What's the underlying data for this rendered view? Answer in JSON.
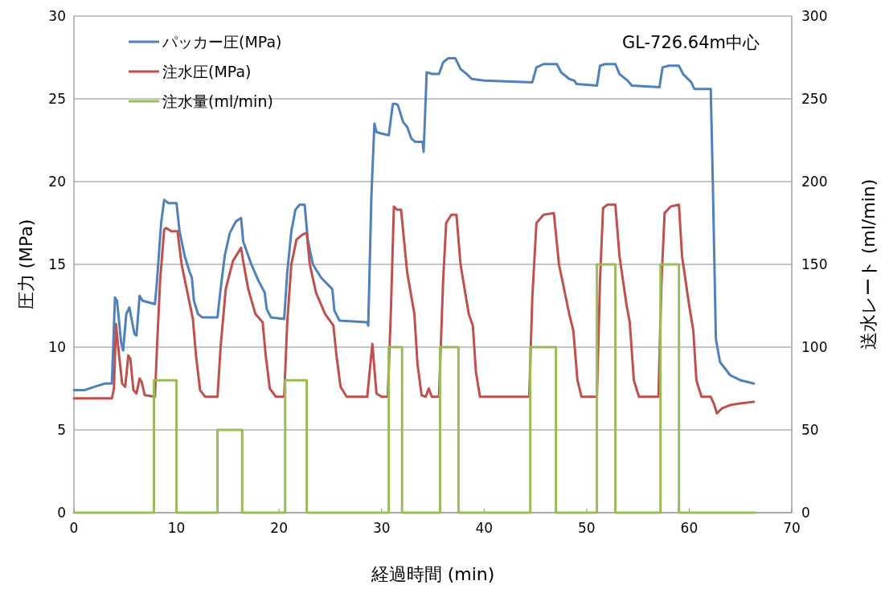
{
  "chart_data": {
    "type": "line",
    "xlabel": "経過時間 (min)",
    "ylabel": "圧力 (MPa)",
    "y2label": "送水レート (ml/min)",
    "annotations": [
      "GL-726.64m中心"
    ],
    "xlim": [
      0,
      70
    ],
    "xticks": [
      0,
      10,
      20,
      30,
      40,
      50,
      60,
      70
    ],
    "ylim": [
      0,
      30
    ],
    "yticks": [
      0,
      5,
      10,
      15,
      20,
      25,
      30
    ],
    "y2lim": [
      0,
      300
    ],
    "y2ticks": [
      0,
      50,
      100,
      150,
      200,
      250,
      300
    ],
    "grid": "y",
    "legend": "top left",
    "series": [
      {
        "name": "パッカー圧(MPa)",
        "color": "#4f81bd",
        "x": [
          0,
          1,
          2,
          3,
          3.7,
          4.0,
          4.2,
          4.6,
          4.8,
          5.1,
          5.4,
          5.9,
          6.1,
          6.4,
          6.7,
          7.9,
          8.1,
          8.5,
          8.8,
          9.2,
          10.0,
          10.3,
          10.8,
          11.3,
          11.5,
          11.7,
          12.1,
          12.5,
          14.0,
          14.3,
          14.7,
          15.2,
          15.8,
          16.3,
          16.5,
          17.3,
          18.0,
          18.6,
          18.8,
          19.2,
          20.5,
          20.8,
          21.2,
          21.6,
          22.0,
          22.5,
          22.8,
          23.3,
          24.1,
          25.2,
          25.4,
          25.9,
          28.6,
          28.7,
          29.0,
          29.3,
          29.5,
          30.0,
          30.7,
          31.1,
          31.4,
          31.6,
          32.1,
          32.5,
          32.9,
          33.3,
          34.0,
          34.1,
          34.4,
          35.0,
          35.6,
          36.0,
          36.5,
          37.2,
          37.7,
          38.3,
          38.8,
          40,
          44.7,
          45.1,
          45.8,
          47.1,
          47.5,
          48.3,
          48.8,
          49.0,
          51.0,
          51.3,
          51.8,
          52.8,
          53.2,
          54.0,
          54.4,
          57.1,
          57.4,
          58.0,
          59.0,
          59.4,
          60.2,
          60.5,
          62.1,
          62.3,
          62.6,
          63.0,
          64.0,
          65.0,
          66.3
        ],
        "values": [
          7.4,
          7.4,
          7.6,
          7.8,
          7.8,
          13.0,
          12.8,
          10.3,
          9.8,
          12.0,
          12.4,
          10.8,
          10.7,
          13.1,
          12.8,
          12.6,
          14,
          17.5,
          18.9,
          18.7,
          18.7,
          17,
          15.5,
          14.5,
          14.2,
          12.8,
          12.0,
          11.8,
          11.8,
          13.5,
          15.5,
          16.9,
          17.6,
          17.8,
          16.4,
          15.0,
          14.0,
          13.3,
          12.3,
          11.8,
          11.7,
          14.5,
          17,
          18.3,
          18.6,
          18.6,
          16.5,
          15.0,
          14.2,
          13.5,
          12.2,
          11.6,
          11.5,
          11.3,
          19,
          23.5,
          23.0,
          22.9,
          22.8,
          24.7,
          24.7,
          24.6,
          23.6,
          23.3,
          22.6,
          22.4,
          22.4,
          21.8,
          26.6,
          26.5,
          26.5,
          27.2,
          27.45,
          27.45,
          26.8,
          26.5,
          26.2,
          26.1,
          26.0,
          26.9,
          27.1,
          27.1,
          26.6,
          26.2,
          26.1,
          25.9,
          25.8,
          27.0,
          27.1,
          27.1,
          26.5,
          26.1,
          25.8,
          25.7,
          26.9,
          27.0,
          27.0,
          26.5,
          26.0,
          25.6,
          25.6,
          20,
          10.5,
          9.1,
          8.3,
          8.0,
          7.8
        ]
      },
      {
        "name": "注水圧(MPa)",
        "color": "#c0504d",
        "x": [
          0,
          3.7,
          3.9,
          4.1,
          4.4,
          4.7,
          5.0,
          5.3,
          5.5,
          5.8,
          6.1,
          6.4,
          6.6,
          6.9,
          7.9,
          8.1,
          8.4,
          8.8,
          9.0,
          9.5,
          10.1,
          10.5,
          11.0,
          11.6,
          11.9,
          12.3,
          12.8,
          14.0,
          14.3,
          14.8,
          15.5,
          16.3,
          16.5,
          17.0,
          17.7,
          18.4,
          18.7,
          19.1,
          19.7,
          20.5,
          20.8,
          21.2,
          21.7,
          22.3,
          22.7,
          23.0,
          23.6,
          24.5,
          25.3,
          25.6,
          26.0,
          26.6,
          28.6,
          29.1,
          29.5,
          30.0,
          30.6,
          30.9,
          31.2,
          31.5,
          31.9,
          32.5,
          33.2,
          33.5,
          33.9,
          34.3,
          34.6,
          34.9,
          35.6,
          36.0,
          36.3,
          36.8,
          37.3,
          37.7,
          38.5,
          38.9,
          39.2,
          39.6,
          44.4,
          44.7,
          45.1,
          45.8,
          46.8,
          47.3,
          48.3,
          48.7,
          49.1,
          49.5,
          51.0,
          51.3,
          51.6,
          52.0,
          52.8,
          53.2,
          53.9,
          54.2,
          54.6,
          55.1,
          57.0,
          57.3,
          57.6,
          58.2,
          59.0,
          59.3,
          60.0,
          60.4,
          60.7,
          61.2,
          62.1,
          62.4,
          62.7,
          63.2,
          64,
          65,
          66.3
        ],
        "values": [
          6.9,
          6.9,
          7.5,
          11.4,
          9.5,
          7.8,
          7.6,
          9.5,
          9.3,
          7.4,
          7.2,
          8.1,
          7.9,
          7.1,
          7.0,
          10,
          14,
          17.1,
          17.2,
          17.0,
          17.0,
          15,
          13.5,
          11.7,
          9.5,
          7.4,
          7.0,
          7.0,
          10,
          13.5,
          15.2,
          16.0,
          15.2,
          13.5,
          12,
          11.5,
          9.5,
          7.5,
          7.0,
          7.0,
          11.5,
          15.0,
          16.5,
          16.8,
          16.9,
          15.0,
          13.3,
          12.0,
          11.3,
          9.5,
          7.6,
          7.0,
          7.0,
          10.2,
          7.2,
          7.0,
          7.0,
          12,
          18.5,
          18.3,
          18.3,
          14.5,
          12.0,
          9.0,
          7.1,
          7.0,
          7.5,
          7.0,
          7.0,
          14,
          17.5,
          18.0,
          18.0,
          15.0,
          12.0,
          11.3,
          8.5,
          7.0,
          7.0,
          13,
          17.5,
          18.0,
          18.1,
          15,
          12.0,
          11.0,
          8,
          7.0,
          7.0,
          14,
          18.4,
          18.6,
          18.6,
          15.5,
          12.5,
          11.5,
          8,
          7.0,
          7.0,
          14,
          18.1,
          18.5,
          18.6,
          15.5,
          12.5,
          11.0,
          8,
          7.0,
          7.0,
          6.6,
          6.0,
          6.3,
          6.5,
          6.6,
          6.7
        ]
      },
      {
        "name": "注水量(ml/min)",
        "color": "#9bbb59",
        "type": "step",
        "axis": "y2",
        "x": [
          0,
          7.8,
          10.0,
          14.0,
          16.4,
          20.6,
          22.7,
          30.7,
          32.0,
          35.7,
          37.5,
          44.5,
          47.0,
          51.0,
          52.8,
          57.2,
          59.0,
          66.5
        ],
        "values": [
          0,
          80,
          0,
          50,
          0,
          80,
          0,
          100,
          0,
          100,
          0,
          100,
          0,
          150,
          0,
          150,
          0,
          0
        ]
      }
    ]
  }
}
